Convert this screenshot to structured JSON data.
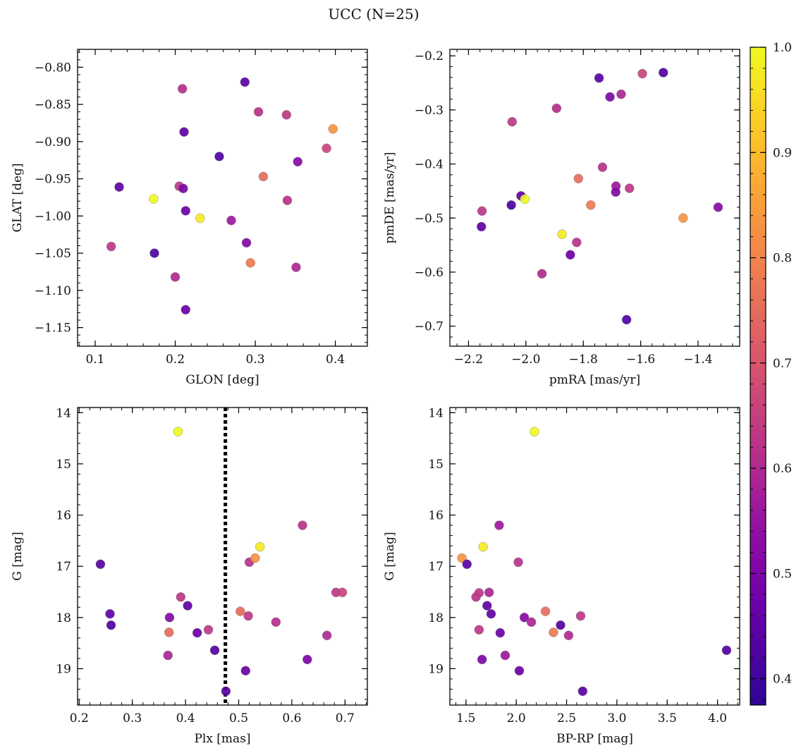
{
  "title": "UCC (N=25)",
  "colorbar": {
    "min": 0.375,
    "max": 1.0,
    "ticks": [
      0.4,
      0.5,
      0.6,
      0.7,
      0.8,
      0.9,
      1.0
    ],
    "tick_labels": [
      "0.4",
      "0.5",
      "0.6",
      "0.7",
      "0.8",
      "0.9",
      "1.0"
    ],
    "colormap": "plasma"
  },
  "chart_data": [
    {
      "type": "scatter",
      "xlabel": "GLON [deg]",
      "ylabel": "GLAT [deg]",
      "xlim": [
        0.078,
        0.44
      ],
      "ylim": [
        -1.175,
        -0.776
      ],
      "y_inverted": false,
      "xticks": [
        0.1,
        0.2,
        0.3,
        0.4
      ],
      "xtick_labels": [
        "0.1",
        "0.2",
        "0.3",
        "0.4"
      ],
      "yticks": [
        -0.8,
        -0.85,
        -0.9,
        -0.95,
        -1.0,
        -1.05,
        -1.1,
        -1.15
      ],
      "ytick_labels": [
        "−0.80",
        "−0.85",
        "−0.90",
        "−0.95",
        "−1.00",
        "−1.05",
        "−1.10",
        "−1.15"
      ],
      "points": [
        {
          "x": 0.12,
          "y": -1.041,
          "c": 0.63
        },
        {
          "x": 0.13,
          "y": -0.961,
          "c": 0.45
        },
        {
          "x": 0.173,
          "y": -0.977,
          "c": 1.0
        },
        {
          "x": 0.174,
          "y": -1.05,
          "c": 0.42
        },
        {
          "x": 0.2,
          "y": -1.082,
          "c": 0.6
        },
        {
          "x": 0.205,
          "y": -0.96,
          "c": 0.63
        },
        {
          "x": 0.209,
          "y": -0.829,
          "c": 0.61
        },
        {
          "x": 0.21,
          "y": -0.963,
          "c": 0.5
        },
        {
          "x": 0.211,
          "y": -0.887,
          "c": 0.45
        },
        {
          "x": 0.213,
          "y": -0.993,
          "c": 0.47
        },
        {
          "x": 0.213,
          "y": -1.126,
          "c": 0.47
        },
        {
          "x": 0.231,
          "y": -1.003,
          "c": 0.98
        },
        {
          "x": 0.255,
          "y": -0.92,
          "c": 0.43
        },
        {
          "x": 0.27,
          "y": -1.006,
          "c": 0.56
        },
        {
          "x": 0.287,
          "y": -0.82,
          "c": 0.44
        },
        {
          "x": 0.289,
          "y": -1.036,
          "c": 0.51
        },
        {
          "x": 0.294,
          "y": -1.063,
          "c": 0.78
        },
        {
          "x": 0.304,
          "y": -0.86,
          "c": 0.62
        },
        {
          "x": 0.31,
          "y": -0.947,
          "c": 0.75
        },
        {
          "x": 0.339,
          "y": -0.864,
          "c": 0.63
        },
        {
          "x": 0.34,
          "y": -0.979,
          "c": 0.62
        },
        {
          "x": 0.351,
          "y": -1.069,
          "c": 0.59
        },
        {
          "x": 0.353,
          "y": -0.927,
          "c": 0.52
        },
        {
          "x": 0.389,
          "y": -0.909,
          "c": 0.66
        },
        {
          "x": 0.397,
          "y": -0.883,
          "c": 0.83
        }
      ]
    },
    {
      "type": "scatter",
      "xlabel": "pmRA [mas/yr]",
      "ylabel": "pmDE [mas/yr]",
      "xlim": [
        -2.265,
        -1.255
      ],
      "ylim": [
        -0.737,
        -0.188
      ],
      "y_inverted": false,
      "xticks": [
        -2.2,
        -2.0,
        -1.8,
        -1.6,
        -1.4
      ],
      "xtick_labels": [
        "−2.2",
        "−2.0",
        "−1.8",
        "−1.6",
        "−1.4"
      ],
      "yticks": [
        -0.2,
        -0.3,
        -0.4,
        -0.5,
        -0.6,
        -0.7
      ],
      "ytick_labels": [
        "−0.2",
        "−0.3",
        "−0.4",
        "−0.5",
        "−0.6",
        "−0.7"
      ],
      "points": [
        {
          "x": -2.153,
          "y": -0.487,
          "c": 0.63
        },
        {
          "x": -2.155,
          "y": -0.516,
          "c": 0.45
        },
        {
          "x": -2.051,
          "y": -0.476,
          "c": 0.42
        },
        {
          "x": -2.048,
          "y": -0.322,
          "c": 0.63
        },
        {
          "x": -2.017,
          "y": -0.459,
          "c": 0.45
        },
        {
          "x": -2.004,
          "y": -0.465,
          "c": 1.0
        },
        {
          "x": -1.944,
          "y": -0.603,
          "c": 0.6
        },
        {
          "x": -1.893,
          "y": -0.297,
          "c": 0.61
        },
        {
          "x": -1.874,
          "y": -0.53,
          "c": 0.98
        },
        {
          "x": -1.845,
          "y": -0.568,
          "c": 0.47
        },
        {
          "x": -1.823,
          "y": -0.545,
          "c": 0.62
        },
        {
          "x": -1.817,
          "y": -0.427,
          "c": 0.75
        },
        {
          "x": -1.774,
          "y": -0.476,
          "c": 0.78
        },
        {
          "x": -1.745,
          "y": -0.241,
          "c": 0.44
        },
        {
          "x": -1.733,
          "y": -0.406,
          "c": 0.62
        },
        {
          "x": -1.707,
          "y": -0.276,
          "c": 0.5
        },
        {
          "x": -1.686,
          "y": -0.441,
          "c": 0.56
        },
        {
          "x": -1.687,
          "y": -0.452,
          "c": 0.51
        },
        {
          "x": -1.668,
          "y": -0.271,
          "c": 0.59
        },
        {
          "x": -1.649,
          "y": -0.688,
          "c": 0.43
        },
        {
          "x": -1.639,
          "y": -0.445,
          "c": 0.63
        },
        {
          "x": -1.594,
          "y": -0.233,
          "c": 0.66
        },
        {
          "x": -1.521,
          "y": -0.231,
          "c": 0.43
        },
        {
          "x": -1.452,
          "y": -0.5,
          "c": 0.83
        },
        {
          "x": -1.33,
          "y": -0.48,
          "c": 0.52
        }
      ]
    },
    {
      "type": "scatter",
      "xlabel": "Plx [mas]",
      "ylabel": "G [mag]",
      "xlim": [
        0.197,
        0.742
      ],
      "ylim": [
        13.9,
        19.71
      ],
      "y_inverted": true,
      "xticks": [
        0.2,
        0.3,
        0.4,
        0.5,
        0.6,
        0.7
      ],
      "xtick_labels": [
        "0.2",
        "0.3",
        "0.4",
        "0.5",
        "0.6",
        "0.7"
      ],
      "yticks": [
        14,
        15,
        16,
        17,
        18,
        19
      ],
      "ytick_labels": [
        "14",
        "15",
        "16",
        "17",
        "18",
        "19"
      ],
      "vline": {
        "x": 0.475,
        "style": "dotted"
      },
      "points": [
        {
          "x": 0.24,
          "y": 16.96,
          "c": 0.44
        },
        {
          "x": 0.258,
          "y": 17.93,
          "c": 0.45
        },
        {
          "x": 0.26,
          "y": 18.15,
          "c": 0.43
        },
        {
          "x": 0.367,
          "y": 18.74,
          "c": 0.59
        },
        {
          "x": 0.369,
          "y": 18.29,
          "c": 0.75
        },
        {
          "x": 0.37,
          "y": 18.0,
          "c": 0.52
        },
        {
          "x": 0.386,
          "y": 14.37,
          "c": 1.0
        },
        {
          "x": 0.391,
          "y": 17.6,
          "c": 0.63
        },
        {
          "x": 0.404,
          "y": 17.77,
          "c": 0.45
        },
        {
          "x": 0.422,
          "y": 18.3,
          "c": 0.47
        },
        {
          "x": 0.443,
          "y": 18.24,
          "c": 0.63
        },
        {
          "x": 0.455,
          "y": 18.64,
          "c": 0.43
        },
        {
          "x": 0.476,
          "y": 19.44,
          "c": 0.44
        },
        {
          "x": 0.503,
          "y": 17.88,
          "c": 0.75
        },
        {
          "x": 0.513,
          "y": 19.04,
          "c": 0.47
        },
        {
          "x": 0.518,
          "y": 17.97,
          "c": 0.63
        },
        {
          "x": 0.52,
          "y": 16.92,
          "c": 0.62
        },
        {
          "x": 0.531,
          "y": 16.84,
          "c": 0.83
        },
        {
          "x": 0.54,
          "y": 16.62,
          "c": 0.98
        },
        {
          "x": 0.57,
          "y": 18.09,
          "c": 0.61
        },
        {
          "x": 0.62,
          "y": 16.2,
          "c": 0.62
        },
        {
          "x": 0.629,
          "y": 18.82,
          "c": 0.5
        },
        {
          "x": 0.666,
          "y": 18.35,
          "c": 0.6
        },
        {
          "x": 0.683,
          "y": 17.51,
          "c": 0.63
        },
        {
          "x": 0.695,
          "y": 17.51,
          "c": 0.66
        }
      ]
    },
    {
      "type": "scatter",
      "xlabel": "BP-RP [mag]",
      "ylabel": "G [mag]",
      "xlim": [
        1.34,
        4.22
      ],
      "ylim": [
        13.9,
        19.71
      ],
      "y_inverted": true,
      "xticks": [
        1.5,
        2.0,
        2.5,
        3.0,
        3.5,
        4.0
      ],
      "xtick_labels": [
        "1.5",
        "2.0",
        "2.5",
        "3.0",
        "3.5",
        "4.0"
      ],
      "yticks": [
        14,
        15,
        16,
        17,
        18,
        19
      ],
      "ytick_labels": [
        "14",
        "15",
        "16",
        "17",
        "18",
        "19"
      ],
      "points": [
        {
          "x": 1.46,
          "y": 16.84,
          "c": 0.83
        },
        {
          "x": 1.51,
          "y": 16.96,
          "c": 0.44
        },
        {
          "x": 1.6,
          "y": 17.6,
          "c": 0.62
        },
        {
          "x": 1.63,
          "y": 17.52,
          "c": 0.63
        },
        {
          "x": 1.63,
          "y": 18.24,
          "c": 0.63
        },
        {
          "x": 1.66,
          "y": 18.82,
          "c": 0.5
        },
        {
          "x": 1.67,
          "y": 16.62,
          "c": 0.98
        },
        {
          "x": 1.71,
          "y": 17.77,
          "c": 0.45
        },
        {
          "x": 1.73,
          "y": 17.51,
          "c": 0.59
        },
        {
          "x": 1.75,
          "y": 17.93,
          "c": 0.45
        },
        {
          "x": 1.83,
          "y": 16.2,
          "c": 0.56
        },
        {
          "x": 1.84,
          "y": 18.3,
          "c": 0.47
        },
        {
          "x": 1.89,
          "y": 18.74,
          "c": 0.56
        },
        {
          "x": 2.02,
          "y": 16.92,
          "c": 0.62
        },
        {
          "x": 2.03,
          "y": 19.04,
          "c": 0.47
        },
        {
          "x": 2.08,
          "y": 18.0,
          "c": 0.52
        },
        {
          "x": 2.15,
          "y": 18.09,
          "c": 0.59
        },
        {
          "x": 2.18,
          "y": 14.37,
          "c": 1.0
        },
        {
          "x": 2.29,
          "y": 17.88,
          "c": 0.75
        },
        {
          "x": 2.37,
          "y": 18.29,
          "c": 0.78
        },
        {
          "x": 2.44,
          "y": 18.15,
          "c": 0.43
        },
        {
          "x": 2.52,
          "y": 18.35,
          "c": 0.6
        },
        {
          "x": 2.64,
          "y": 17.97,
          "c": 0.63
        },
        {
          "x": 2.66,
          "y": 19.44,
          "c": 0.44
        },
        {
          "x": 4.09,
          "y": 18.64,
          "c": 0.43
        }
      ]
    }
  ]
}
